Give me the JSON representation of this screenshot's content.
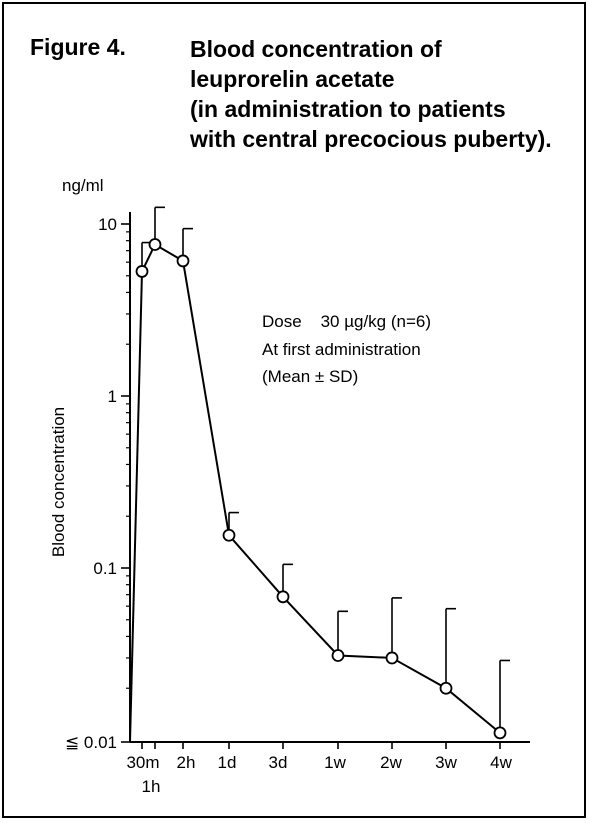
{
  "figure": {
    "label": "Figure 4.",
    "title_lines": [
      "Blood concentration of",
      "leuprorelin acetate",
      "(in administration to patients",
      "with central precocious puberty)."
    ]
  },
  "chart_data": {
    "type": "line",
    "title": "Blood concentration of leuprorelin acetate (in administration to patients with central precocious puberty).",
    "ylabel": "Blood concentration",
    "yunit": "ng/ml",
    "yscale": "log",
    "ylim": [
      0.01,
      10
    ],
    "ytick_labels": [
      "≦ 0.01",
      "0.1",
      "1",
      "10"
    ],
    "ytick_values": [
      0.01,
      0.1,
      1,
      10
    ],
    "xtick_labels": [
      "30m",
      "1h",
      "2h",
      "1d",
      "3d",
      "1w",
      "2w",
      "3w",
      "4w"
    ],
    "grid": false,
    "annotation_lines": [
      "Dose    30 µg/kg (n=6)",
      "At first administration",
      "(Mean ± SD)"
    ],
    "series": [
      {
        "points": [
          {
            "x": "0",
            "mean": 0.01,
            "sd_upper": null
          },
          {
            "x": "30m",
            "mean": 5.3,
            "sd_upper": 7.8
          },
          {
            "x": "1h",
            "mean": 7.6,
            "sd_upper": 12.5
          },
          {
            "x": "2h",
            "mean": 6.1,
            "sd_upper": 9.4
          },
          {
            "x": "1d",
            "mean": 0.155,
            "sd_upper": 0.21
          },
          {
            "x": "3d",
            "mean": 0.068,
            "sd_upper": 0.105
          },
          {
            "x": "1w",
            "mean": 0.031,
            "sd_upper": 0.056
          },
          {
            "x": "2w",
            "mean": 0.03,
            "sd_upper": 0.067
          },
          {
            "x": "3w",
            "mean": 0.02,
            "sd_upper": 0.058
          },
          {
            "x": "4w",
            "mean": 0.011,
            "sd_upper": 0.029
          }
        ]
      }
    ]
  }
}
